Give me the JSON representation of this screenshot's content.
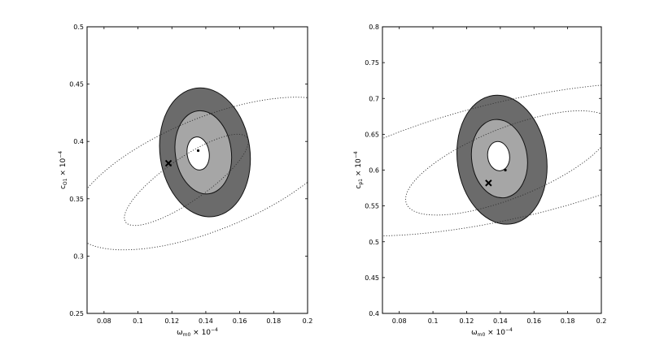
{
  "chart_data": [
    {
      "type": "contour",
      "xlabel": {
        "base": "ω",
        "sub": "m0",
        "suffix": " × 10",
        "sup": "−4"
      },
      "ylabel": {
        "base": "c",
        "sub": "O1",
        "suffix": " × 10",
        "sup": "−4"
      },
      "xlim": [
        0.07,
        0.2
      ],
      "ylim": [
        0.25,
        0.5
      ],
      "xticks": [
        "0.08",
        "0.1",
        "0.12",
        "0.14",
        "0.16",
        "0.18",
        "0.2"
      ],
      "xtick_values": [
        0.08,
        0.1,
        0.12,
        0.14,
        0.16,
        0.18,
        0.2
      ],
      "yticks": [
        "0.25",
        "0.3",
        "0.35",
        "0.4",
        "0.45",
        "0.5"
      ],
      "ytick_values": [
        0.25,
        0.3,
        0.35,
        0.4,
        0.45,
        0.5
      ],
      "filled_regions": [
        {
          "level": "outer",
          "color": "#6b6b6b",
          "center": [
            0.1395,
            0.3905
          ],
          "semi_x": 0.0265,
          "semi_y": 0.0565,
          "tilt_deg": -8
        },
        {
          "level": "middle",
          "color": "#a6a6a6",
          "center": [
            0.1385,
            0.3905
          ],
          "semi_x": 0.0165,
          "semi_y": 0.0365,
          "tilt_deg": -8
        },
        {
          "level": "inner",
          "color": "#ffffff",
          "center": [
            0.1355,
            0.3895
          ],
          "semi_x": 0.0065,
          "semi_y": 0.0145,
          "tilt_deg": -8
        }
      ],
      "dotted_contours": [
        {
          "center": [
            0.1425,
            0.372
          ],
          "semi_major": 0.0953,
          "semi_minor": 0.0445,
          "angle_deg": 36
        },
        {
          "center": [
            0.1285,
            0.3665
          ],
          "semi_major": 0.0517,
          "semi_minor": 0.0157,
          "angle_deg": 48
        }
      ],
      "markers": [
        {
          "symbol": "x",
          "x": 0.118,
          "y": 0.381
        },
        {
          "symbol": "dot",
          "x": 0.1355,
          "y": 0.392
        }
      ]
    },
    {
      "type": "contour",
      "xlabel": {
        "base": "ω",
        "sub": "m0",
        "suffix": " × 10",
        "sup": "−4"
      },
      "ylabel": {
        "base": "c",
        "sub": "p1",
        "suffix": " × 10",
        "sup": "−4"
      },
      "xlim": [
        0.07,
        0.2
      ],
      "ylim": [
        0.4,
        0.8
      ],
      "xticks": [
        "0.08",
        "0.1",
        "0.12",
        "0.14",
        "0.16",
        "0.18",
        "0.2"
      ],
      "xtick_values": [
        0.08,
        0.1,
        0.12,
        0.14,
        0.16,
        0.18,
        0.2
      ],
      "yticks": [
        "0.4",
        "0.45",
        "0.5",
        "0.55",
        "0.6",
        "0.65",
        "0.7",
        "0.75",
        "0.8"
      ],
      "ytick_values": [
        0.4,
        0.45,
        0.5,
        0.55,
        0.6,
        0.65,
        0.7,
        0.75,
        0.8
      ],
      "filled_regions": [
        {
          "level": "outer",
          "color": "#6b6b6b",
          "center": [
            0.141,
            0.6145
          ],
          "semi_x": 0.0265,
          "semi_y": 0.0905,
          "tilt_deg": -8
        },
        {
          "level": "middle",
          "color": "#a6a6a6",
          "center": [
            0.1395,
            0.616
          ],
          "semi_x": 0.0165,
          "semi_y": 0.055,
          "tilt_deg": -8
        },
        {
          "level": "inner",
          "color": "#ffffff",
          "center": [
            0.139,
            0.6195
          ],
          "semi_x": 0.0065,
          "semi_y": 0.0205,
          "tilt_deg": -8
        }
      ],
      "dotted_contours": [
        {
          "center": [
            0.1465,
            0.615
          ],
          "semi_major": 0.1528,
          "semi_minor": 0.0716,
          "angle_deg": 36
        },
        {
          "center": [
            0.145,
            0.61
          ],
          "semi_major": 0.0879,
          "semi_minor": 0.0364,
          "angle_deg": 52
        }
      ],
      "markers": [
        {
          "symbol": "x",
          "x": 0.133,
          "y": 0.582
        },
        {
          "symbol": "dot",
          "x": 0.143,
          "y": 0.6
        }
      ]
    }
  ]
}
